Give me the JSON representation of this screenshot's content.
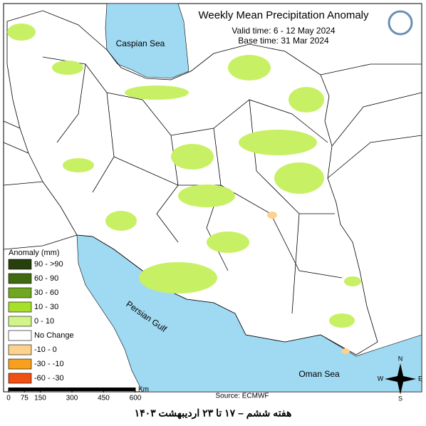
{
  "title": "Weekly Mean Precipitation Anomaly",
  "valid_time": "Valid time: 6 - 12 May 2024",
  "base_time": "Base time: 31 Mar 2024",
  "water_labels": {
    "caspian": "Caspian Sea",
    "gulf": "Persian Gulf",
    "oman": "Oman Sea"
  },
  "legend": {
    "title": "Anomaly (mm)",
    "items": [
      {
        "label": "90 - >90",
        "color": "#263f0c"
      },
      {
        "label": "60 - 90",
        "color": "#3f6a12"
      },
      {
        "label": "30 - 60",
        "color": "#6fa81e"
      },
      {
        "label": "10 - 30",
        "color": "#a6e028"
      },
      {
        "label": "0 - 10",
        "color": "#d2f58a"
      },
      {
        "label": "No Change",
        "color": "#ffffff"
      },
      {
        "label": "-10 - 0",
        "color": "#fcd28c"
      },
      {
        "label": "-30 - -10",
        "color": "#f8a01e"
      },
      {
        "label": "-60 - -30",
        "color": "#f05014"
      }
    ]
  },
  "scale": {
    "ticks": [
      0,
      75,
      150,
      300,
      450,
      600
    ],
    "unit": "Km"
  },
  "compass": {
    "n": "N",
    "e": "E",
    "s": "S",
    "w": "W"
  },
  "source": "Source: ECMWF",
  "caption": "هفته ششم – ۱۷ تا ۲۳ اردیبهشت ۱۴۰۳"
}
